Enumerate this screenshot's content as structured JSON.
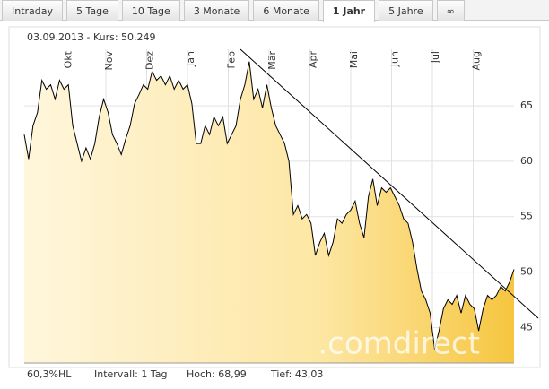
{
  "tabs": [
    "Intraday",
    "5 Tage",
    "10 Tage",
    "3 Monate",
    "6 Monate",
    "1 Jahr",
    "5 Jahre",
    "∞"
  ],
  "active_tab": 5,
  "chart_data": {
    "type": "line",
    "header": "03.09.2013  -  Kurs: 50,249",
    "watermark": ".comdirect",
    "footer": [
      "60,3%HL",
      "Intervall: 1 Tag",
      "Hoch: 68,99",
      "Tief: 43,03"
    ],
    "xlim": [
      0,
      12
    ],
    "xticks": [
      {
        "value": 1,
        "label": "Okt"
      },
      {
        "value": 2,
        "label": "Nov"
      },
      {
        "value": 3,
        "label": "Dez"
      },
      {
        "value": 4,
        "label": "Jan"
      },
      {
        "value": 5,
        "label": "Feb"
      },
      {
        "value": 6,
        "label": "Mär"
      },
      {
        "value": 7,
        "label": "Apr"
      },
      {
        "value": 8,
        "label": "Mai"
      },
      {
        "value": 9,
        "label": "Jun"
      },
      {
        "value": 10,
        "label": "Jul"
      },
      {
        "value": 11,
        "label": "Aug"
      }
    ],
    "ylim": [
      41.8,
      70.1
    ],
    "yticks": [
      45,
      50,
      55,
      60,
      65
    ],
    "grid": true,
    "color": "#000000",
    "values": [
      62.4,
      60.2,
      63.2,
      64.4,
      67.3,
      66.5,
      66.9,
      65.6,
      67.3,
      66.5,
      66.9,
      63.2,
      61.6,
      60.0,
      61.2,
      60.2,
      61.6,
      64.0,
      65.6,
      64.4,
      62.4,
      61.6,
      60.6,
      62.0,
      63.2,
      65.2,
      66.0,
      66.9,
      66.5,
      68.1,
      67.3,
      67.7,
      66.9,
      67.7,
      66.5,
      67.3,
      66.5,
      66.9,
      65.2,
      61.6,
      61.6,
      63.2,
      62.4,
      64.0,
      63.2,
      64.0,
      61.6,
      62.4,
      63.2,
      65.6,
      66.9,
      68.99,
      65.6,
      66.5,
      64.8,
      66.9,
      64.8,
      63.2,
      62.4,
      61.6,
      60.0,
      55.2,
      56.0,
      54.8,
      55.2,
      54.4,
      51.5,
      52.7,
      53.5,
      51.5,
      52.7,
      54.8,
      54.4,
      55.2,
      55.6,
      56.4,
      54.4,
      53.1,
      56.8,
      58.4,
      56.0,
      57.6,
      57.2,
      57.6,
      56.8,
      56.0,
      54.8,
      54.4,
      52.7,
      50.3,
      48.3,
      47.5,
      46.3,
      43.03,
      44.7,
      46.7,
      47.5,
      47.1,
      47.9,
      46.3,
      47.9,
      47.1,
      46.7,
      44.7,
      46.7,
      47.9,
      47.5,
      47.9,
      48.7,
      48.3,
      49.1,
      50.249
    ]
  }
}
